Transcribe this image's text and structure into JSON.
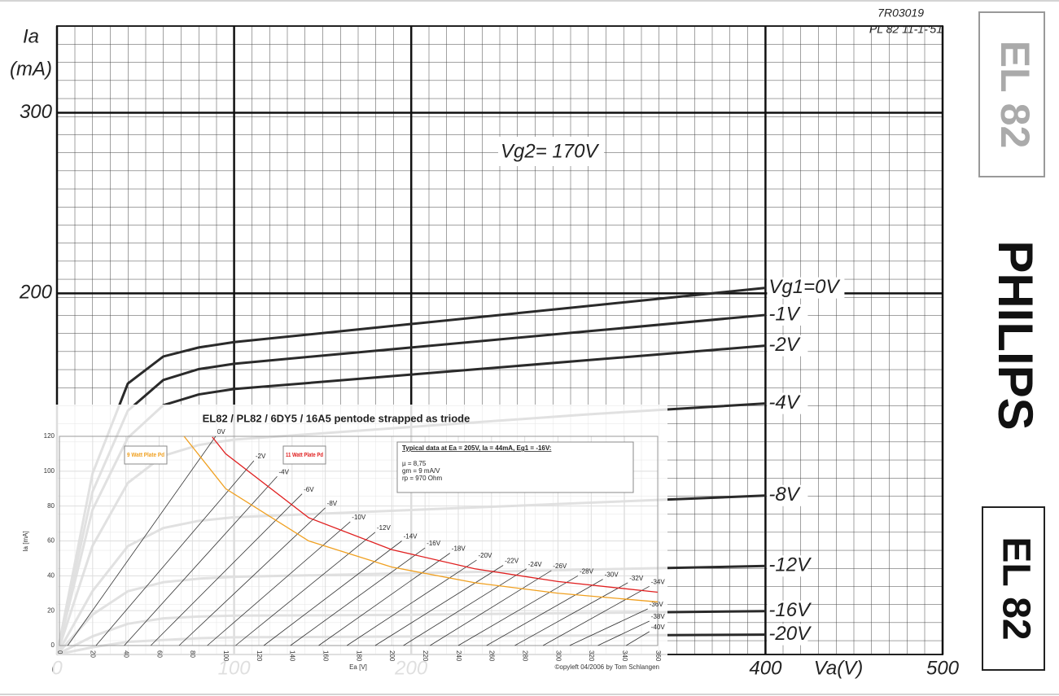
{
  "chart_data": [
    {
      "type": "line",
      "annotation": "Vg2= 170V",
      "ylabel": [
        "Ia",
        "(mA)"
      ],
      "xlabel": "Va(V)",
      "x": [
        0,
        20,
        40,
        60,
        80,
        100,
        200,
        300,
        400
      ],
      "xlim": [
        0,
        500
      ],
      "xticks": [
        0,
        100,
        200,
        400,
        500
      ],
      "ylim": [
        0,
        348
      ],
      "yticks": [
        200,
        300
      ],
      "grid": true,
      "series": [
        {
          "name": "Vg1=0V",
          "color": "#2a2a2a",
          "values": [
            0,
            100,
            150,
            165,
            170,
            173,
            183,
            193,
            203
          ]
        },
        {
          "name": "-1V",
          "color": "#2a2a2a",
          "values": [
            0,
            90,
            135,
            152,
            158,
            161,
            170,
            179,
            188
          ]
        },
        {
          "name": "-2V",
          "color": "#2a2a2a",
          "values": [
            0,
            80,
            120,
            138,
            144,
            147,
            155,
            163,
            171
          ]
        },
        {
          "name": "-4V",
          "color": "#2a2a2a",
          "values": [
            0,
            60,
            95,
            110,
            116,
            119,
            126,
            133,
            139
          ]
        },
        {
          "name": "-8V",
          "color": "#2a2a2a",
          "values": [
            0,
            35,
            60,
            70,
            74,
            76,
            80,
            84,
            88
          ]
        },
        {
          "name": "-12V",
          "color": "#2a2a2a",
          "values": [
            0,
            22,
            35,
            40,
            42,
            43,
            45,
            47,
            49
          ]
        },
        {
          "name": "-16V",
          "color": "#2a2a2a",
          "values": [
            0,
            10,
            17,
            20,
            21,
            21.5,
            22,
            23,
            24
          ]
        },
        {
          "name": "-20V",
          "color": "#2a2a2a",
          "values": [
            0,
            4,
            7,
            8,
            9,
            9.5,
            10,
            10.5,
            11
          ]
        }
      ]
    },
    {
      "type": "line",
      "title": "EL82 / PL82 / 6DY5 / 16A5 pentode strapped as triode",
      "xlabel": "Ea [V]",
      "ylabel": "Ia [mA]",
      "footer": "©opyleft 04/2006 by Tom Schlangen",
      "info": [
        "Typical data at Ea = 205V, Ia = 44mA, Eg1 = -16V:",
        "µ   = 8,75",
        "gm  = 9 mA/V",
        "rp   = 970 Ohm"
      ],
      "xlim": [
        0,
        360
      ],
      "xticks": [
        0,
        20,
        40,
        60,
        80,
        100,
        120,
        140,
        160,
        180,
        200,
        220,
        240,
        260,
        280,
        300,
        320,
        340,
        360
      ],
      "ylim": [
        0,
        120
      ],
      "yticks": [
        0,
        20,
        40,
        60,
        80,
        100,
        120
      ],
      "grid": true,
      "series": [
        {
          "name": "0V",
          "color": "#333",
          "x": [
            5,
            94
          ],
          "values": [
            0,
            120
          ]
        },
        {
          "name": "-2V",
          "color": "#333",
          "x": [
            22,
            117
          ],
          "values": [
            0,
            106
          ]
        },
        {
          "name": "-4V",
          "color": "#333",
          "x": [
            39,
            131
          ],
          "values": [
            0,
            97
          ]
        },
        {
          "name": "-6V",
          "color": "#333",
          "x": [
            55,
            146
          ],
          "values": [
            0,
            87
          ]
        },
        {
          "name": "-8V",
          "color": "#333",
          "x": [
            72,
            160
          ],
          "values": [
            0,
            79
          ]
        },
        {
          "name": "-10V",
          "color": "#333",
          "x": [
            89,
            175
          ],
          "values": [
            0,
            71
          ]
        },
        {
          "name": "-12V",
          "color": "#333",
          "x": [
            106,
            190
          ],
          "values": [
            0,
            65
          ]
        },
        {
          "name": "-14V",
          "color": "#333",
          "x": [
            123,
            206
          ],
          "values": [
            0,
            60
          ]
        },
        {
          "name": "-16V",
          "color": "#333",
          "x": [
            139,
            220
          ],
          "values": [
            0,
            56
          ]
        },
        {
          "name": "-18V",
          "color": "#333",
          "x": [
            156,
            235
          ],
          "values": [
            0,
            53
          ]
        },
        {
          "name": "-20V",
          "color": "#333",
          "x": [
            173,
            251
          ],
          "values": [
            0,
            49
          ]
        },
        {
          "name": "-22V",
          "color": "#333",
          "x": [
            190,
            267
          ],
          "values": [
            0,
            46
          ]
        },
        {
          "name": "-24V",
          "color": "#333",
          "x": [
            207,
            281
          ],
          "values": [
            0,
            44
          ]
        },
        {
          "name": "-26V",
          "color": "#333",
          "x": [
            223,
            296
          ],
          "values": [
            0,
            43
          ]
        },
        {
          "name": "-28V",
          "color": "#333",
          "x": [
            240,
            312
          ],
          "values": [
            0,
            40
          ]
        },
        {
          "name": "-30V",
          "color": "#333",
          "x": [
            257,
            327
          ],
          "values": [
            0,
            38
          ]
        },
        {
          "name": "-32V",
          "color": "#333",
          "x": [
            274,
            342
          ],
          "values": [
            0,
            36
          ]
        },
        {
          "name": "-34V",
          "color": "#333",
          "x": [
            291,
            355
          ],
          "values": [
            0,
            34
          ]
        },
        {
          "name": "-36V",
          "color": "#333",
          "x": [
            307,
            354
          ],
          "values": [
            0,
            21
          ]
        },
        {
          "name": "-38V",
          "color": "#333",
          "x": [
            324,
            355
          ],
          "values": [
            0,
            14
          ]
        },
        {
          "name": "-40V",
          "color": "#333",
          "x": [
            341,
            355
          ],
          "values": [
            0,
            8
          ]
        }
      ],
      "power_curves": [
        {
          "name": "9 Watt Plate Pd",
          "color": "#f0a020",
          "x": [
            75,
            100,
            150,
            200,
            250,
            300,
            360
          ],
          "values": [
            120,
            90,
            60,
            45,
            36,
            30,
            25
          ]
        },
        {
          "name": "11 Watt Plate Pd",
          "color": "#e02020",
          "x": [
            92,
            100,
            150,
            200,
            250,
            300,
            360
          ],
          "values": [
            119.6,
            110,
            73.3,
            55,
            44,
            36.7,
            30.6
          ]
        }
      ]
    }
  ],
  "stamp": [
    "7R03019",
    "PL 82 11-1-'51"
  ],
  "side_labels": [
    "EL 82",
    "PHILIPS",
    "EL 82"
  ]
}
